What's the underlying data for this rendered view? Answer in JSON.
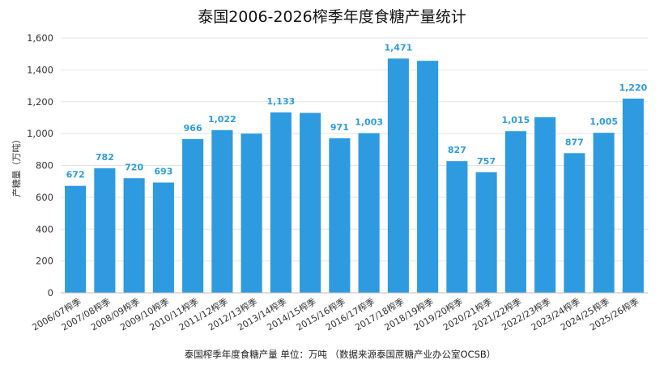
{
  "chart_data": {
    "type": "bar",
    "title": "泰国2006-2026榨季年度食糖产量统计",
    "ylabel": "产糖量（万吨）",
    "xlabel": "",
    "ylim": [
      0,
      1600
    ],
    "yticks": [
      "0",
      "200",
      "400",
      "600",
      "800",
      "1,000",
      "1,200",
      "1,400",
      "1,600"
    ],
    "ytick_values": [
      0,
      200,
      400,
      600,
      800,
      1000,
      1200,
      1400,
      1600
    ],
    "grid": true,
    "bar_color": "#2E9BE0",
    "label_color": "#2E9BE0",
    "categories": [
      "2006/07榨季",
      "2007/08榨季",
      "2008/09榨季",
      "2009/10榨季",
      "2010/11榨季",
      "2011/12榨季",
      "2012/13榨季",
      "2013/14榨季",
      "2014/15榨季",
      "2015/16榨季",
      "2016/17榨季",
      "2017/18榨季",
      "2018/19榨季",
      "2019/20榨季",
      "2020/21榨季",
      "2021/22榨季",
      "2022/23榨季",
      "2023/24榨季",
      "2024/25榨季",
      "2025/26榨季"
    ],
    "values": [
      672,
      782,
      720,
      693,
      966,
      1022,
      1000,
      1133,
      1130,
      971,
      1003,
      1471,
      1457,
      827,
      757,
      1015,
      1103,
      877,
      1005,
      1220
    ],
    "data_labels": [
      "672",
      "782",
      "720",
      "693",
      "966",
      "1,022",
      "",
      "1,133",
      "",
      "971",
      "1,003",
      "1,471",
      "",
      "827",
      "757",
      "1,015",
      "",
      "877",
      "1,005",
      "1,220"
    ],
    "footnote": "泰国榨季年度食糖产量  单位：万吨  （数据来源泰国蔗糖产业办公室OCSB）"
  }
}
